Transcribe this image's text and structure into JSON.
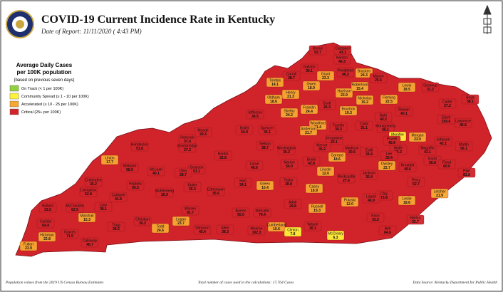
{
  "header": {
    "title": "COVID-19 Current Incidence Rate in Kentucky",
    "date": "Date of Report: 11/11/2020 ( 4:43 PM)"
  },
  "legend": {
    "title_line1": "Average Daily Cases",
    "title_line2": "per 100K population",
    "note": "(based on previous seven days)",
    "items": [
      {
        "label": "On Track (< 1 per 100K)",
        "color": "#8fd13f"
      },
      {
        "label": "Community Spread (≥ 1 - 10 per 100K)",
        "color": "#fff23a"
      },
      {
        "label": "Accelerated (≥ 10 - 25 per 100K)",
        "color": "#f7a833"
      },
      {
        "label": "Critical (25+ per 100K)",
        "color": "#d0232a"
      }
    ]
  },
  "counties": [
    {
      "name": "Boone",
      "value": 52.7,
      "color": "#d0232a"
    },
    {
      "name": "Campbell",
      "value": 43.1,
      "color": "#d0232a"
    },
    {
      "name": "Kenton",
      "value": 46.3,
      "color": "#d0232a"
    },
    {
      "name": "Gallatin",
      "value": 39.1,
      "color": "#d0232a"
    },
    {
      "name": "Carroll",
      "value": 38.7,
      "color": "#d0232a"
    },
    {
      "name": "Trimble",
      "value": 14.1,
      "color": "#f7a833"
    },
    {
      "name": "Owen",
      "value": 18,
      "value_label": "18.0",
      "color": "#f7a833"
    },
    {
      "name": "Grant",
      "value": 23.3,
      "color": "#f7a833"
    },
    {
      "name": "Pendleton",
      "value": 46.2,
      "color": "#d0232a"
    },
    {
      "name": "Bracken",
      "value": 24.3,
      "color": "#f7a833"
    },
    {
      "name": "Mason",
      "value": 25.5,
      "color": "#d0232a"
    },
    {
      "name": "Henry",
      "value": 21.3,
      "color": "#f7a833"
    },
    {
      "name": "Oldham",
      "value": 18.6,
      "color": "#f7a833"
    },
    {
      "name": "Shelby",
      "value": 24.2,
      "color": "#f7a833"
    },
    {
      "name": "Franklin",
      "value": 24.4,
      "color": "#f7a833"
    },
    {
      "name": "Scott",
      "value": 26.3,
      "color": "#d0232a"
    },
    {
      "name": "Harrison",
      "value": 23.9,
      "color": "#f7a833"
    },
    {
      "name": "Robertson",
      "value": 15.4,
      "color": "#f7a833"
    },
    {
      "name": "Nicholas",
      "value": 15.2,
      "color": "#f7a833"
    },
    {
      "name": "Fleming",
      "value": 22.5,
      "color": "#f7a833"
    },
    {
      "name": "Lewis",
      "value": 18.5,
      "color": "#f7a833"
    },
    {
      "name": "Greenup",
      "value": 31.2,
      "color": "#d0232a"
    },
    {
      "name": "Boyd",
      "value": 38.1,
      "color": "#d0232a"
    },
    {
      "name": "Carter",
      "value": 27.2,
      "color": "#d0232a"
    },
    {
      "name": "Elliott",
      "value": 159.6,
      "color": "#d0232a"
    },
    {
      "name": "Rowan",
      "value": 40.1,
      "color": "#d0232a"
    },
    {
      "name": "Bath",
      "value": 40.2,
      "color": "#d0232a"
    },
    {
      "name": "Bourbon",
      "value": 19.3,
      "color": "#f7a833"
    },
    {
      "name": "Montgomery",
      "value": 36.1,
      "color": "#d0232a"
    },
    {
      "name": "Menifee",
      "value": 8,
      "value_label": "8.0",
      "color": "#fff23a"
    },
    {
      "name": "Morgan",
      "value": 23,
      "value_label": "23.0",
      "color": "#f7a833"
    },
    {
      "name": "Lawrence",
      "value": 46.6,
      "color": "#d0232a"
    },
    {
      "name": "Johnson",
      "value": 42.1,
      "color": "#d0232a"
    },
    {
      "name": "Martin",
      "value": 56.1,
      "color": "#d0232a"
    },
    {
      "name": "Magoffin",
      "value": 43.1,
      "color": "#d0232a"
    },
    {
      "name": "Wolfe",
      "value": 35.3,
      "color": "#d0232a"
    },
    {
      "name": "Powell",
      "value": 45.9,
      "color": "#d0232a"
    },
    {
      "name": "Clark",
      "value": 31.1,
      "color": "#d0232a"
    },
    {
      "name": "Fayette",
      "value": 34.3,
      "color": "#d0232a"
    },
    {
      "name": "Woodford",
      "value": 21.4,
      "color": "#f7a833"
    },
    {
      "name": "Anderson",
      "value": 21.7,
      "color": "#f7a833"
    },
    {
      "name": "Jessamine",
      "value": 25.1,
      "color": "#d0232a"
    },
    {
      "name": "Madison",
      "value": 30.6,
      "color": "#d0232a"
    },
    {
      "name": "Estill",
      "value": 34.4,
      "color": "#d0232a"
    },
    {
      "name": "Lee",
      "value": 33.4,
      "color": "#d0232a"
    },
    {
      "name": "Owsley",
      "value": 22.7,
      "color": "#f7a833"
    },
    {
      "name": "Breathitt",
      "value": 49.6,
      "color": "#d0232a"
    },
    {
      "name": "Knott",
      "value": 58.8,
      "color": "#d0232a"
    },
    {
      "name": "Floyd",
      "value": 60.6,
      "color": "#d0232a"
    },
    {
      "name": "Pike",
      "value": 81.8,
      "color": "#d0232a"
    },
    {
      "name": "Letcher",
      "value": 21.9,
      "color": "#f7a833"
    },
    {
      "name": "Perry",
      "value": 52.7,
      "color": "#d0232a"
    },
    {
      "name": "Leslie",
      "value": 18.6,
      "color": "#f7a833"
    },
    {
      "name": "Clay",
      "value": 73.8,
      "color": "#d0232a"
    },
    {
      "name": "Jackson",
      "value": 35.4,
      "color": "#d0232a"
    },
    {
      "name": "Rockcastle",
      "value": 27.6,
      "color": "#d0232a"
    },
    {
      "name": "Garrard",
      "value": 18.6,
      "color": "#f7a833"
    },
    {
      "name": "Boyle",
      "value": 42.8,
      "color": "#d0232a"
    },
    {
      "name": "Mercer",
      "value": 35.2,
      "color": "#d0232a"
    },
    {
      "name": "Lincoln",
      "value": 12,
      "value_label": "12.0",
      "color": "#f7a833"
    },
    {
      "name": "Casey",
      "value": 16.9,
      "color": "#f7a833"
    },
    {
      "name": "Pulaski",
      "value": 12,
      "value_label": "12.0",
      "color": "#f7a833"
    },
    {
      "name": "Laurel",
      "value": 46.9,
      "color": "#d0232a"
    },
    {
      "name": "Knox",
      "value": 33.5,
      "color": "#d0232a"
    },
    {
      "name": "Bell",
      "value": 84.6,
      "color": "#d0232a"
    },
    {
      "name": "Harlan",
      "value": 35.7,
      "color": "#d0232a"
    },
    {
      "name": "McCreary",
      "value": 6.3,
      "color": "#fff23a"
    },
    {
      "name": "Wayne",
      "value": 26.1,
      "color": "#d0232a"
    },
    {
      "name": "Clinton",
      "value": 7.8,
      "color": "#fff23a"
    },
    {
      "name": "Russell",
      "value": 15.3,
      "color": "#f7a833"
    },
    {
      "name": "Adair",
      "value": 29.8,
      "color": "#d0232a"
    },
    {
      "name": "Cumberland",
      "value": 10.6,
      "color": "#f7a833"
    },
    {
      "name": "Monroe",
      "value": 102.3,
      "color": "#d0232a"
    },
    {
      "name": "Metcalfe",
      "value": 79.4,
      "color": "#d0232a"
    },
    {
      "name": "Green",
      "value": 10.4,
      "color": "#f7a833"
    },
    {
      "name": "Taylor",
      "value": 28.8,
      "color": "#d0232a"
    },
    {
      "name": "Marion",
      "value": 54,
      "value_label": "54.0",
      "color": "#d0232a"
    },
    {
      "name": "Washington",
      "value": 35.2,
      "color": "#d0232a"
    },
    {
      "name": "Nelson",
      "value": 38.7,
      "color": "#d0232a"
    },
    {
      "name": "Spencer",
      "value": 35.1,
      "color": "#d0232a"
    },
    {
      "name": "Jefferson",
      "value": 36.5,
      "color": "#d0232a"
    },
    {
      "name": "Bullitt",
      "value": 54.9,
      "color": "#d0232a"
    },
    {
      "name": "Hardin",
      "value": 32.8,
      "color": "#d0232a"
    },
    {
      "name": "Larue",
      "value": 40.6,
      "color": "#d0232a"
    },
    {
      "name": "Hart",
      "value": 34.1,
      "color": "#d0232a"
    },
    {
      "name": "Barren",
      "value": 50,
      "value_label": "50.0",
      "color": "#d0232a"
    },
    {
      "name": "Allen",
      "value": 38.3,
      "color": "#d0232a"
    },
    {
      "name": "Simpson",
      "value": 45.4,
      "color": "#d0232a"
    },
    {
      "name": "Warren",
      "value": 91.7,
      "color": "#d0232a"
    },
    {
      "name": "Edmonson",
      "value": 35.6,
      "color": "#d0232a"
    },
    {
      "name": "Butler",
      "value": 26.3,
      "color": "#d0232a"
    },
    {
      "name": "Grayson",
      "value": 51.1,
      "color": "#d0232a"
    },
    {
      "name": "Breckinridge",
      "value": 27.3,
      "color": "#d0232a"
    },
    {
      "name": "Meade",
      "value": 29.4,
      "color": "#d0232a"
    },
    {
      "name": "Hancock",
      "value": 37.4,
      "color": "#d0232a"
    },
    {
      "name": "Ohio",
      "value": 28.7,
      "color": "#d0232a"
    },
    {
      "name": "Henderson",
      "value": 51.8,
      "color": "#d0232a"
    },
    {
      "name": "Union",
      "value": 17.7,
      "color": "#f7a833"
    },
    {
      "name": "Webster",
      "value": 58.5,
      "color": "#d0232a"
    },
    {
      "name": "McLean",
      "value": 40.1,
      "color": "#d0232a"
    },
    {
      "name": "Hopkins",
      "value": 59.5,
      "color": "#d0232a"
    },
    {
      "name": "Muhlenberg",
      "value": 26.9,
      "color": "#d0232a"
    },
    {
      "name": "Logan",
      "value": 23.7,
      "color": "#f7a833"
    },
    {
      "name": "Todd",
      "value": 24.6,
      "color": "#f7a833"
    },
    {
      "name": "Christian",
      "value": 30.2,
      "color": "#d0232a"
    },
    {
      "name": "Trigg",
      "value": 36.6,
      "color": "#d0232a"
    },
    {
      "name": "Caldwell",
      "value": 41.8,
      "color": "#d0232a"
    },
    {
      "name": "Crittenden",
      "value": 36.2,
      "color": "#d0232a"
    },
    {
      "name": "Livingston",
      "value": 52.8,
      "color": "#d0232a"
    },
    {
      "name": "Lyon",
      "value": 38.1,
      "color": "#d0232a"
    },
    {
      "name": "Marshall",
      "value": 15.3,
      "color": "#f7a833"
    },
    {
      "name": "Calloway",
      "value": 40.7,
      "color": "#d0232a"
    },
    {
      "name": "Graves",
      "value": 71.5,
      "color": "#d0232a"
    },
    {
      "name": "McCracken",
      "value": 62.5,
      "color": "#d0232a"
    },
    {
      "name": "Ballard",
      "value": 33.5,
      "color": "#d0232a"
    },
    {
      "name": "Carlisle",
      "value": 64.4,
      "color": "#d0232a"
    },
    {
      "name": "Hickman",
      "value": 22.8,
      "color": "#f7a833"
    },
    {
      "name": "Fulton",
      "value": 23.9,
      "color": "#f7a833"
    }
  ],
  "footer": {
    "left": "Population values from the 2019 US Census Bureau Estimates",
    "center": "Total number of cases used in the calculations: 17,764 Cases",
    "right": "Data Source: Kentucky Department for Public Health"
  }
}
